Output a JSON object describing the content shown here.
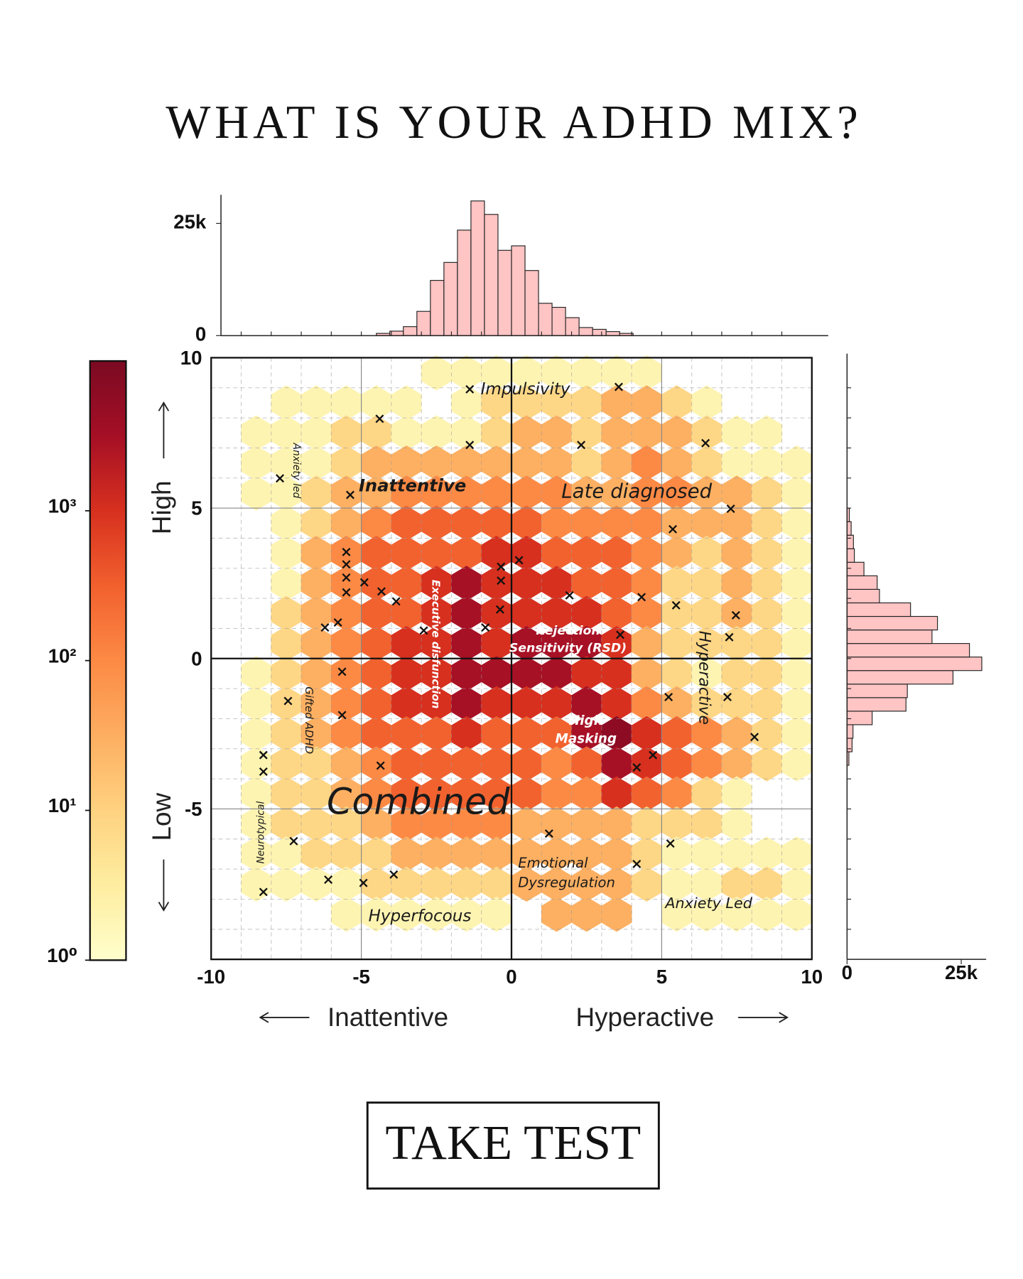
{
  "title": "WHAT IS YOUR ADHD MIX?",
  "button": "TAKE TEST",
  "chart_data": [
    {
      "type": "hexbin",
      "x": [
        -9.5,
        -8.5,
        -7.5,
        -6.5,
        -5.5,
        -4.5,
        -3.5,
        -2.5,
        -1.5,
        -0.5,
        0.5,
        1.5,
        2.5,
        3.5,
        4.5,
        5.5,
        6.5,
        7.5,
        8.5,
        9.5
      ],
      "y": [
        9.5,
        8.5,
        7.5,
        6.5,
        5.5,
        4.5,
        3.5,
        2.5,
        1.5,
        0.5,
        -0.5,
        -1.5,
        -2.5,
        -3.5,
        -4.5,
        -5.5,
        -6.5,
        -7.5,
        -8.5
      ],
      "values": [
        [
          null,
          null,
          null,
          null,
          null,
          null,
          null,
          2,
          2,
          2,
          2,
          2,
          2,
          2,
          2,
          null,
          null,
          null,
          null,
          null
        ],
        [
          null,
          null,
          2,
          2,
          2,
          2,
          2,
          null,
          2,
          8,
          8,
          8,
          8,
          30,
          30,
          8,
          2,
          null,
          null,
          null
        ],
        [
          null,
          2,
          2,
          2,
          8,
          8,
          2,
          2,
          2,
          8,
          30,
          30,
          8,
          30,
          30,
          30,
          8,
          2,
          2,
          null
        ],
        [
          null,
          2,
          2,
          2,
          8,
          30,
          30,
          30,
          30,
          30,
          30,
          30,
          8,
          30,
          100,
          30,
          8,
          2,
          2,
          2
        ],
        [
          null,
          2,
          2,
          8,
          30,
          30,
          100,
          100,
          100,
          100,
          100,
          100,
          30,
          30,
          100,
          100,
          30,
          30,
          8,
          2
        ],
        [
          null,
          null,
          2,
          8,
          30,
          100,
          300,
          300,
          300,
          300,
          300,
          100,
          100,
          100,
          100,
          30,
          30,
          30,
          8,
          2
        ],
        [
          null,
          null,
          2,
          30,
          100,
          300,
          300,
          300,
          300,
          1000,
          1000,
          300,
          300,
          300,
          100,
          30,
          8,
          30,
          8,
          2
        ],
        [
          null,
          null,
          2,
          30,
          100,
          300,
          300,
          1000,
          3000,
          1000,
          1000,
          1000,
          300,
          300,
          100,
          8,
          8,
          30,
          8,
          2
        ],
        [
          null,
          null,
          8,
          30,
          100,
          300,
          300,
          1000,
          3000,
          1000,
          1000,
          1000,
          1000,
          300,
          100,
          8,
          8,
          30,
          8,
          2
        ],
        [
          null,
          null,
          8,
          30,
          100,
          300,
          1000,
          1000,
          3000,
          1000,
          3000,
          3000,
          3000,
          1000,
          30,
          8,
          8,
          8,
          8,
          2
        ],
        [
          null,
          2,
          8,
          30,
          100,
          300,
          1000,
          1000,
          3000,
          3000,
          3000,
          3000,
          1000,
          1000,
          30,
          8,
          2,
          8,
          8,
          2
        ],
        [
          null,
          2,
          8,
          30,
          100,
          300,
          1000,
          1000,
          3000,
          1000,
          1000,
          1000,
          3000,
          1000,
          100,
          30,
          8,
          8,
          8,
          2
        ],
        [
          null,
          2,
          8,
          30,
          100,
          300,
          300,
          300,
          1000,
          300,
          300,
          300,
          3000,
          6000,
          1000,
          300,
          100,
          30,
          8,
          2
        ],
        [
          null,
          2,
          8,
          8,
          30,
          100,
          300,
          300,
          300,
          300,
          300,
          100,
          300,
          3000,
          1000,
          300,
          100,
          30,
          8,
          2
        ],
        [
          null,
          2,
          8,
          8,
          30,
          100,
          300,
          300,
          300,
          300,
          300,
          100,
          100,
          1000,
          300,
          100,
          8,
          2,
          null,
          null
        ],
        [
          null,
          2,
          8,
          8,
          8,
          30,
          100,
          100,
          100,
          100,
          30,
          30,
          30,
          30,
          8,
          8,
          8,
          2,
          null,
          null
        ],
        [
          null,
          2,
          2,
          8,
          8,
          8,
          30,
          30,
          30,
          30,
          30,
          30,
          30,
          30,
          8,
          2,
          2,
          2,
          2,
          2
        ],
        [
          null,
          2,
          2,
          2,
          2,
          8,
          8,
          8,
          8,
          8,
          30,
          30,
          30,
          30,
          8,
          2,
          2,
          8,
          8,
          2
        ],
        [
          null,
          null,
          null,
          null,
          2,
          2,
          2,
          2,
          2,
          2,
          null,
          30,
          30,
          30,
          null,
          2,
          2,
          2,
          2,
          2
        ]
      ],
      "colormap": [
        "#ffffcc",
        "#feeda0",
        "#fed280",
        "#fdae61",
        "#fc8a45",
        "#f2602e",
        "#d7301f",
        "#a50f25",
        "#7a0a22"
      ],
      "clim": [
        1,
        10000
      ],
      "color_scale": "log",
      "points": {
        "color": "#111111",
        "x": [
          -1.39,
          3.57,
          -4.39,
          -1.39,
          2.32,
          6.46,
          -7.71,
          -5.37,
          7.3,
          5.37,
          -5.5,
          -5.5,
          -5.5,
          -4.9,
          -5.5,
          -4.33,
          -3.84,
          0.25,
          -0.35,
          -0.35,
          1.93,
          4.33,
          5.48,
          -0.38,
          7.47,
          -5.78,
          -6.21,
          -2.92,
          -0.87,
          3.62,
          7.25,
          -5.64,
          -7.44,
          5.23,
          7.19,
          -5.64,
          8.09,
          -8.26,
          -8.26,
          -4.36,
          4.71,
          4.17,
          1.25,
          -7.25,
          5.29,
          4.17,
          -6.1,
          -4.93,
          -3.92,
          -8.26
        ],
        "y": [
          8.95,
          9.03,
          7.97,
          7.1,
          7.1,
          7.16,
          5.99,
          5.44,
          4.98,
          4.3,
          3.54,
          3.13,
          2.69,
          2.53,
          2.2,
          2.23,
          1.9,
          3.27,
          3.05,
          2.59,
          2.1,
          2.04,
          1.77,
          1.63,
          1.44,
          1.2,
          1.03,
          0.93,
          1.03,
          0.79,
          0.71,
          -0.44,
          -1.41,
          -1.28,
          -1.28,
          -1.88,
          -2.61,
          -3.21,
          -3.76,
          -3.56,
          -3.21,
          -3.62,
          -5.82,
          -6.07,
          -6.15,
          -6.83,
          -7.35,
          -7.46,
          -7.18,
          -7.76
        ]
      },
      "xlim": [
        -10,
        10
      ],
      "ylim": [
        -10,
        10
      ],
      "xticks": [
        -10,
        -5,
        0,
        5,
        10
      ],
      "yticks": [
        -5,
        0,
        5,
        10
      ],
      "grid": true,
      "grid_step": 1,
      "xlabel": [
        "Inattentive",
        "Hyperactive"
      ],
      "ylabel": [
        "High",
        "Low"
      ],
      "annotations": [
        [
          "Impulsivity"
        ],
        [
          "Inattentive"
        ],
        [
          "Late diagnosed"
        ],
        [
          "Anxiety led"
        ],
        [
          "Executive disfunction"
        ],
        [
          "Rejection",
          "Sensitivity (RSD)"
        ],
        [
          "Hyperactive"
        ],
        [
          "Gifted ADHD"
        ],
        [
          "High",
          "Masking"
        ],
        [
          "Combined"
        ],
        [
          "Neurotypical"
        ],
        [
          "Emotional",
          "Dysregulation"
        ],
        [
          "Hyperfocous"
        ],
        [
          "Anxiety Led"
        ]
      ]
    },
    {
      "type": "histogram",
      "orientation": "vertical",
      "bins": [
        -4.5,
        -4.05,
        -3.6,
        -3.15,
        -2.7,
        -2.25,
        -1.8,
        -1.35,
        -0.9,
        -0.45,
        0,
        0.45,
        0.9,
        1.35,
        1.8,
        2.25,
        2.7,
        3.15,
        3.6,
        4.05
      ],
      "values": [
        500,
        1000,
        2000,
        5400,
        12300,
        16300,
        23500,
        30000,
        27000,
        19000,
        20000,
        14500,
        7200,
        6300,
        4000,
        1800,
        1400,
        900,
        500
      ],
      "color": "#ffc4c4",
      "xlim": [
        -10,
        10
      ],
      "ylim": [
        0,
        31000
      ],
      "yticks": [
        0,
        {
          "value": 25000,
          "label": "25k"
        }
      ]
    },
    {
      "type": "histogram",
      "orientation": "horizontal",
      "bins": [
        -3.55,
        -3.1,
        -2.65,
        -2.2,
        -1.75,
        -1.3,
        -0.85,
        -0.4,
        0.05,
        0.5,
        0.95,
        1.4,
        1.85,
        2.3,
        2.75,
        3.2,
        3.65,
        4.1,
        4.55,
        5.0
      ],
      "values": [
        400,
        1100,
        1300,
        5500,
        12900,
        13200,
        23200,
        29500,
        26800,
        18600,
        19800,
        13900,
        7100,
        6600,
        3700,
        1600,
        1400,
        900,
        500
      ],
      "color": "#ffc4c4",
      "ylim": [
        -10,
        10
      ],
      "xlim": [
        0,
        31000
      ],
      "xticks": [
        0,
        {
          "value": 25000,
          "label": "25k"
        }
      ]
    },
    {
      "type": "colorbar",
      "scale": "log",
      "lim": [
        1,
        10000
      ],
      "ticks": [
        {
          "value": 1,
          "label": "10⁰"
        },
        {
          "value": 10,
          "label": "10¹"
        },
        {
          "value": 100,
          "label": "10²"
        },
        {
          "value": 1000,
          "label": "10³"
        }
      ]
    }
  ]
}
